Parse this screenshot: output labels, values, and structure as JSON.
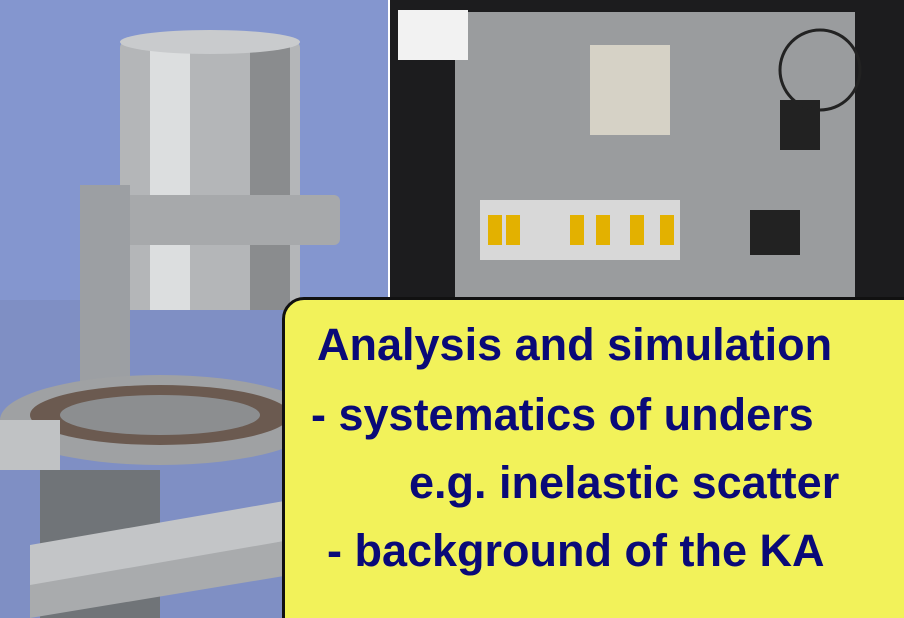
{
  "slide": {
    "lines": [
      "Analysis and simulation",
      "- systematics of unders",
      "e.g. inelastic scatter",
      "- background of the KA"
    ]
  }
}
